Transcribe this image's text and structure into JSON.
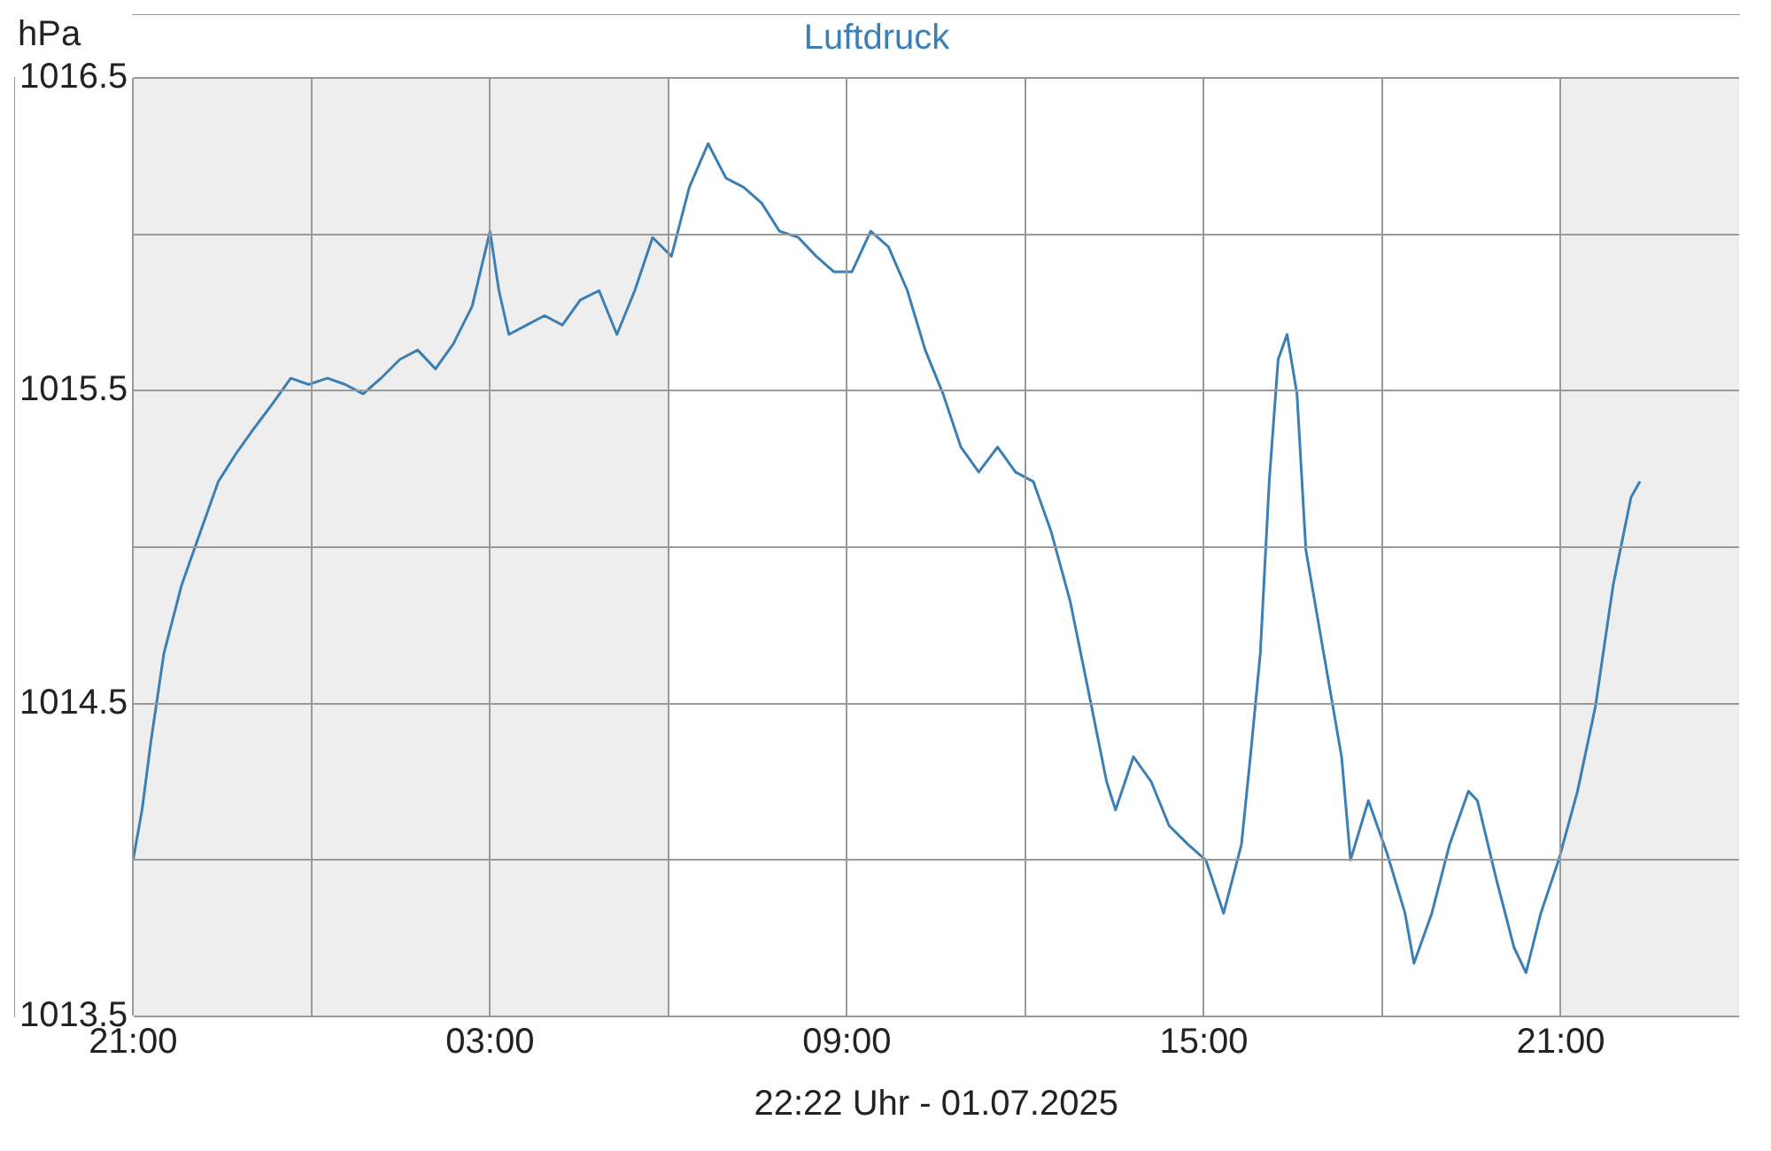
{
  "chart_data": {
    "type": "line",
    "title": "Luftdruck",
    "ylabel": "hPa",
    "annotations": [
      "22:22 Uhr - 01.07.2025"
    ],
    "xlim": [
      "2025-06-30T21:00",
      "2025-07-02T00:00"
    ],
    "xticks": [
      {
        "value": "2025-06-30T21:00",
        "label": "21:00"
      },
      {
        "value": "2025-07-01T00:00",
        "label": null
      },
      {
        "value": "2025-07-01T03:00",
        "label": "03:00"
      },
      {
        "value": "2025-07-01T06:00",
        "label": null
      },
      {
        "value": "2025-07-01T09:00",
        "label": "09:00"
      },
      {
        "value": "2025-07-01T12:00",
        "label": null
      },
      {
        "value": "2025-07-01T15:00",
        "label": "15:00"
      },
      {
        "value": "2025-07-01T18:00",
        "label": null
      },
      {
        "value": "2025-07-01T21:00",
        "label": "21:00"
      }
    ],
    "ylim": [
      1013.5,
      1016.5
    ],
    "yticks": [
      1013.5,
      {
        "value": 1014,
        "label": null
      },
      1014.5,
      {
        "value": 1015,
        "label": null
      },
      1015.5,
      {
        "value": 1016,
        "label": null
      },
      1016.5
    ],
    "grid": true,
    "legend": false,
    "marker": "none",
    "line_style": "solid",
    "bands": [
      {
        "axis": "x",
        "from": "2025-06-30T21:00",
        "to": "2025-07-01T06:00",
        "color": "#eeeeee"
      },
      {
        "axis": "x",
        "from": "2025-07-01T21:00",
        "to": "2025-07-02T00:00",
        "color": "#eeeeee"
      }
    ],
    "series": [
      {
        "color": "#3b7fb5",
        "x": [
          "2025-06-30T21:00",
          "2025-06-30T21:09",
          "2025-06-30T21:18",
          "2025-06-30T21:31",
          "2025-06-30T21:49",
          "2025-06-30T22:08",
          "2025-06-30T22:26",
          "2025-06-30T22:44",
          "2025-06-30T23:02",
          "2025-06-30T23:21",
          "2025-06-30T23:39",
          "2025-06-30T23:57",
          "2025-07-01T00:16",
          "2025-07-01T00:34",
          "2025-07-01T00:52",
          "2025-07-01T01:10",
          "2025-07-01T01:29",
          "2025-07-01T01:47",
          "2025-07-01T02:05",
          "2025-07-01T02:23",
          "2025-07-01T02:42",
          "2025-07-01T03:00",
          "2025-07-01T03:09",
          "2025-07-01T03:19",
          "2025-07-01T03:37",
          "2025-07-01T03:55",
          "2025-07-01T04:13",
          "2025-07-01T04:31",
          "2025-07-01T04:50",
          "2025-07-01T05:08",
          "2025-07-01T05:26",
          "2025-07-01T05:44",
          "2025-07-01T06:03",
          "2025-07-01T06:21",
          "2025-07-01T06:40",
          "2025-07-01T06:58",
          "2025-07-01T07:16",
          "2025-07-01T07:34",
          "2025-07-01T07:52",
          "2025-07-01T08:11",
          "2025-07-01T08:29",
          "2025-07-01T08:47",
          "2025-07-01T09:05",
          "2025-07-01T09:24",
          "2025-07-01T09:42",
          "2025-07-01T10:01",
          "2025-07-01T10:19",
          "2025-07-01T10:37",
          "2025-07-01T10:55",
          "2025-07-01T11:13",
          "2025-07-01T11:32",
          "2025-07-01T11:50",
          "2025-07-01T12:08",
          "2025-07-01T12:26",
          "2025-07-01T12:45",
          "2025-07-01T13:03",
          "2025-07-01T13:22",
          "2025-07-01T13:31",
          "2025-07-01T13:49",
          "2025-07-01T14:07",
          "2025-07-01T14:25",
          "2025-07-01T14:44",
          "2025-07-01T15:02",
          "2025-07-01T15:20",
          "2025-07-01T15:29",
          "2025-07-01T15:38",
          "2025-07-01T15:47",
          "2025-07-01T15:57",
          "2025-07-01T16:06",
          "2025-07-01T16:15",
          "2025-07-01T16:24",
          "2025-07-01T16:34",
          "2025-07-01T16:43",
          "2025-07-01T17:01",
          "2025-07-01T17:19",
          "2025-07-01T17:28",
          "2025-07-01T17:46",
          "2025-07-01T18:05",
          "2025-07-01T18:23",
          "2025-07-01T18:32",
          "2025-07-01T18:50",
          "2025-07-01T19:08",
          "2025-07-01T19:27",
          "2025-07-01T19:36",
          "2025-07-01T19:55",
          "2025-07-01T20:13",
          "2025-07-01T20:25",
          "2025-07-01T20:40",
          "2025-07-01T20:58",
          "2025-07-01T21:17",
          "2025-07-01T21:35",
          "2025-07-01T21:53",
          "2025-07-01T22:11",
          "2025-07-01T22:20"
        ],
        "values": [
          1014.0,
          1014.16,
          1014.38,
          1014.66,
          1014.88,
          1015.05,
          1015.21,
          1015.3,
          1015.38,
          1015.46,
          1015.54,
          1015.52,
          1015.54,
          1015.52,
          1015.49,
          1015.54,
          1015.6,
          1015.63,
          1015.57,
          1015.65,
          1015.77,
          1016.01,
          1015.82,
          1015.68,
          1015.71,
          1015.74,
          1015.71,
          1015.79,
          1015.82,
          1015.68,
          1015.82,
          1015.99,
          1015.93,
          1016.15,
          1016.29,
          1016.18,
          1016.15,
          1016.1,
          1016.01,
          1015.99,
          1015.93,
          1015.88,
          1015.88,
          1016.01,
          1015.96,
          1015.82,
          1015.63,
          1015.49,
          1015.32,
          1015.24,
          1015.32,
          1015.24,
          1015.21,
          1015.05,
          1014.83,
          1014.55,
          1014.25,
          1014.16,
          1014.33,
          1014.25,
          1014.11,
          1014.05,
          1014.0,
          1013.83,
          1013.94,
          1014.05,
          1014.33,
          1014.66,
          1015.21,
          1015.6,
          1015.68,
          1015.49,
          1014.99,
          1014.66,
          1014.33,
          1014.0,
          1014.19,
          1014.02,
          1013.83,
          1013.67,
          1013.83,
          1014.05,
          1014.22,
          1014.19,
          1013.94,
          1013.72,
          1013.64,
          1013.83,
          1014.0,
          1014.22,
          1014.49,
          1014.88,
          1015.16,
          1015.21
        ]
      }
    ]
  }
}
